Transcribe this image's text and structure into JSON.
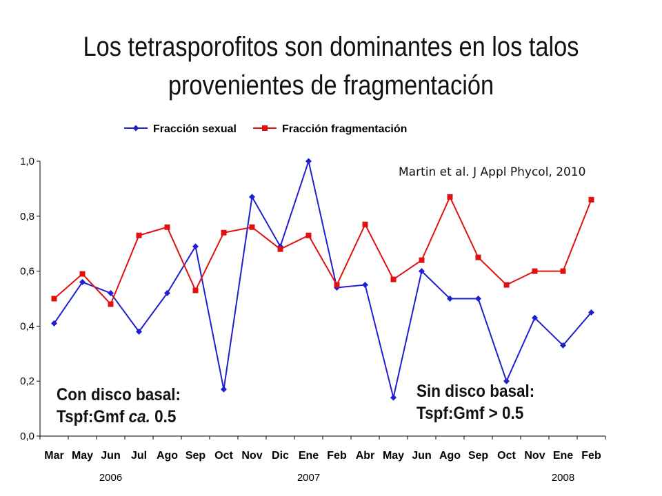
{
  "slide": {
    "title_line1": "Los tetrasporofitos son dominantes en los talos",
    "title_line2": "provenientes de fragmentación",
    "citation": "Martin et al. J Appl Phycol, 2010",
    "note_left": {
      "line1": "Con disco basal:",
      "line2_prefix": "Tspf:Gmf ",
      "line2_italic": "ca.",
      "line2_suffix": " 0.5"
    },
    "note_right": {
      "line1": "Sin disco basal:",
      "line2": "Tspf:Gmf > 0.5"
    }
  },
  "chart_data": {
    "type": "line",
    "categories": [
      "Mar",
      "May",
      "Jun",
      "Jul",
      "Ago",
      "Sep",
      "Oct",
      "Nov",
      "Dic",
      "Ene",
      "Feb",
      "Abr",
      "May",
      "Jun",
      "Ago",
      "Sep",
      "Oct",
      "Nov",
      "Ene",
      "Feb"
    ],
    "year_labels": [
      {
        "label": "2006",
        "category_index": 2
      },
      {
        "label": "2007",
        "category_index": 9
      },
      {
        "label": "2008",
        "category_index": 18
      }
    ],
    "ylim": [
      0,
      1.0
    ],
    "yticks": [
      "0,0",
      "0,2",
      "0,4",
      "0,6",
      "0,8",
      "1,0"
    ],
    "ytick_values": [
      0,
      0.2,
      0.4,
      0.6,
      0.8,
      1.0
    ],
    "legend_position": "top",
    "grid": false,
    "series": [
      {
        "name": "Fracción sexual",
        "color": "#1f1fd0",
        "marker": "diamond",
        "values": [
          0.41,
          0.56,
          0.52,
          0.38,
          0.52,
          0.69,
          0.17,
          0.87,
          0.69,
          1.0,
          0.54,
          0.55,
          0.14,
          0.6,
          0.5,
          0.5,
          0.2,
          0.43,
          0.33,
          0.45
        ]
      },
      {
        "name": "Fracción fragmentación",
        "color": "#e01010",
        "marker": "square",
        "values": [
          0.5,
          0.59,
          0.48,
          0.73,
          0.76,
          0.53,
          0.74,
          0.76,
          0.68,
          0.73,
          0.55,
          0.77,
          0.57,
          0.64,
          0.87,
          0.65,
          0.55,
          0.6,
          0.6,
          0.86
        ]
      }
    ]
  }
}
